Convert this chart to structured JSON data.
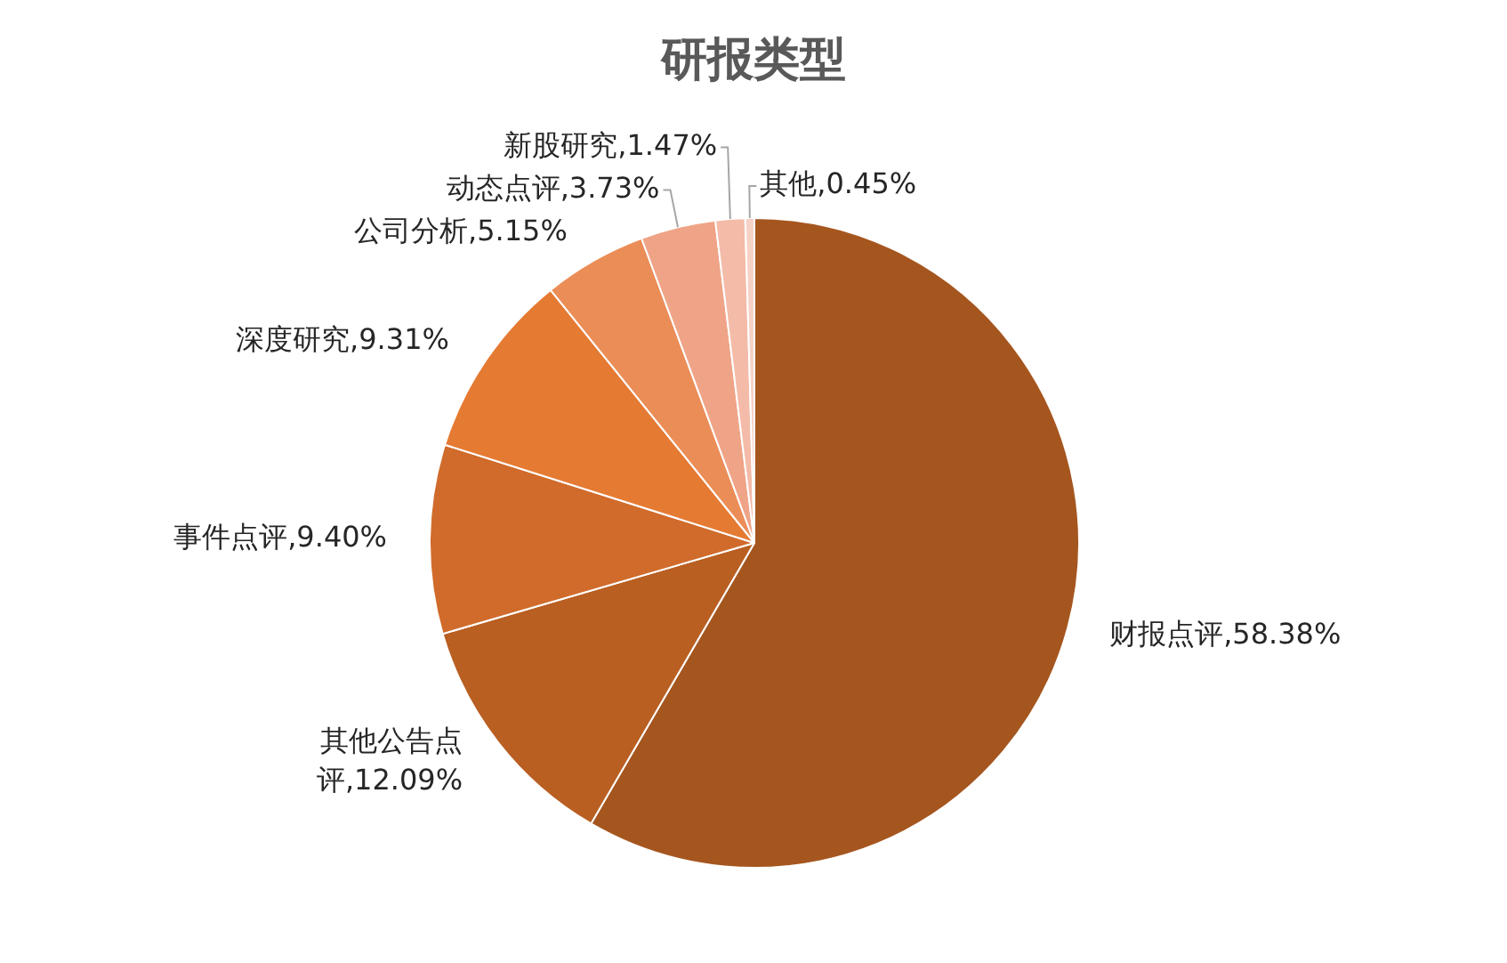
{
  "chart_data": {
    "type": "pie",
    "title": "研报类型",
    "categories": [
      "财报点评",
      "其他公告点评",
      "事件点评",
      "深度研究",
      "公司分析",
      "动态点评",
      "新股研究",
      "其他"
    ],
    "values": [
      58.38,
      12.09,
      9.4,
      9.31,
      5.15,
      3.73,
      1.47,
      0.45
    ],
    "value_labels": [
      "58.38%",
      "12.09%",
      "9.40%",
      "9.31%",
      "5.15%",
      "3.73%",
      "1.47%",
      "0.45%"
    ],
    "colors": [
      "#a5561f",
      "#b95f22",
      "#d06b2b",
      "#e57a33",
      "#eb8d57",
      "#efa487",
      "#f3bba8",
      "#f6d2c6"
    ],
    "legend": false
  }
}
